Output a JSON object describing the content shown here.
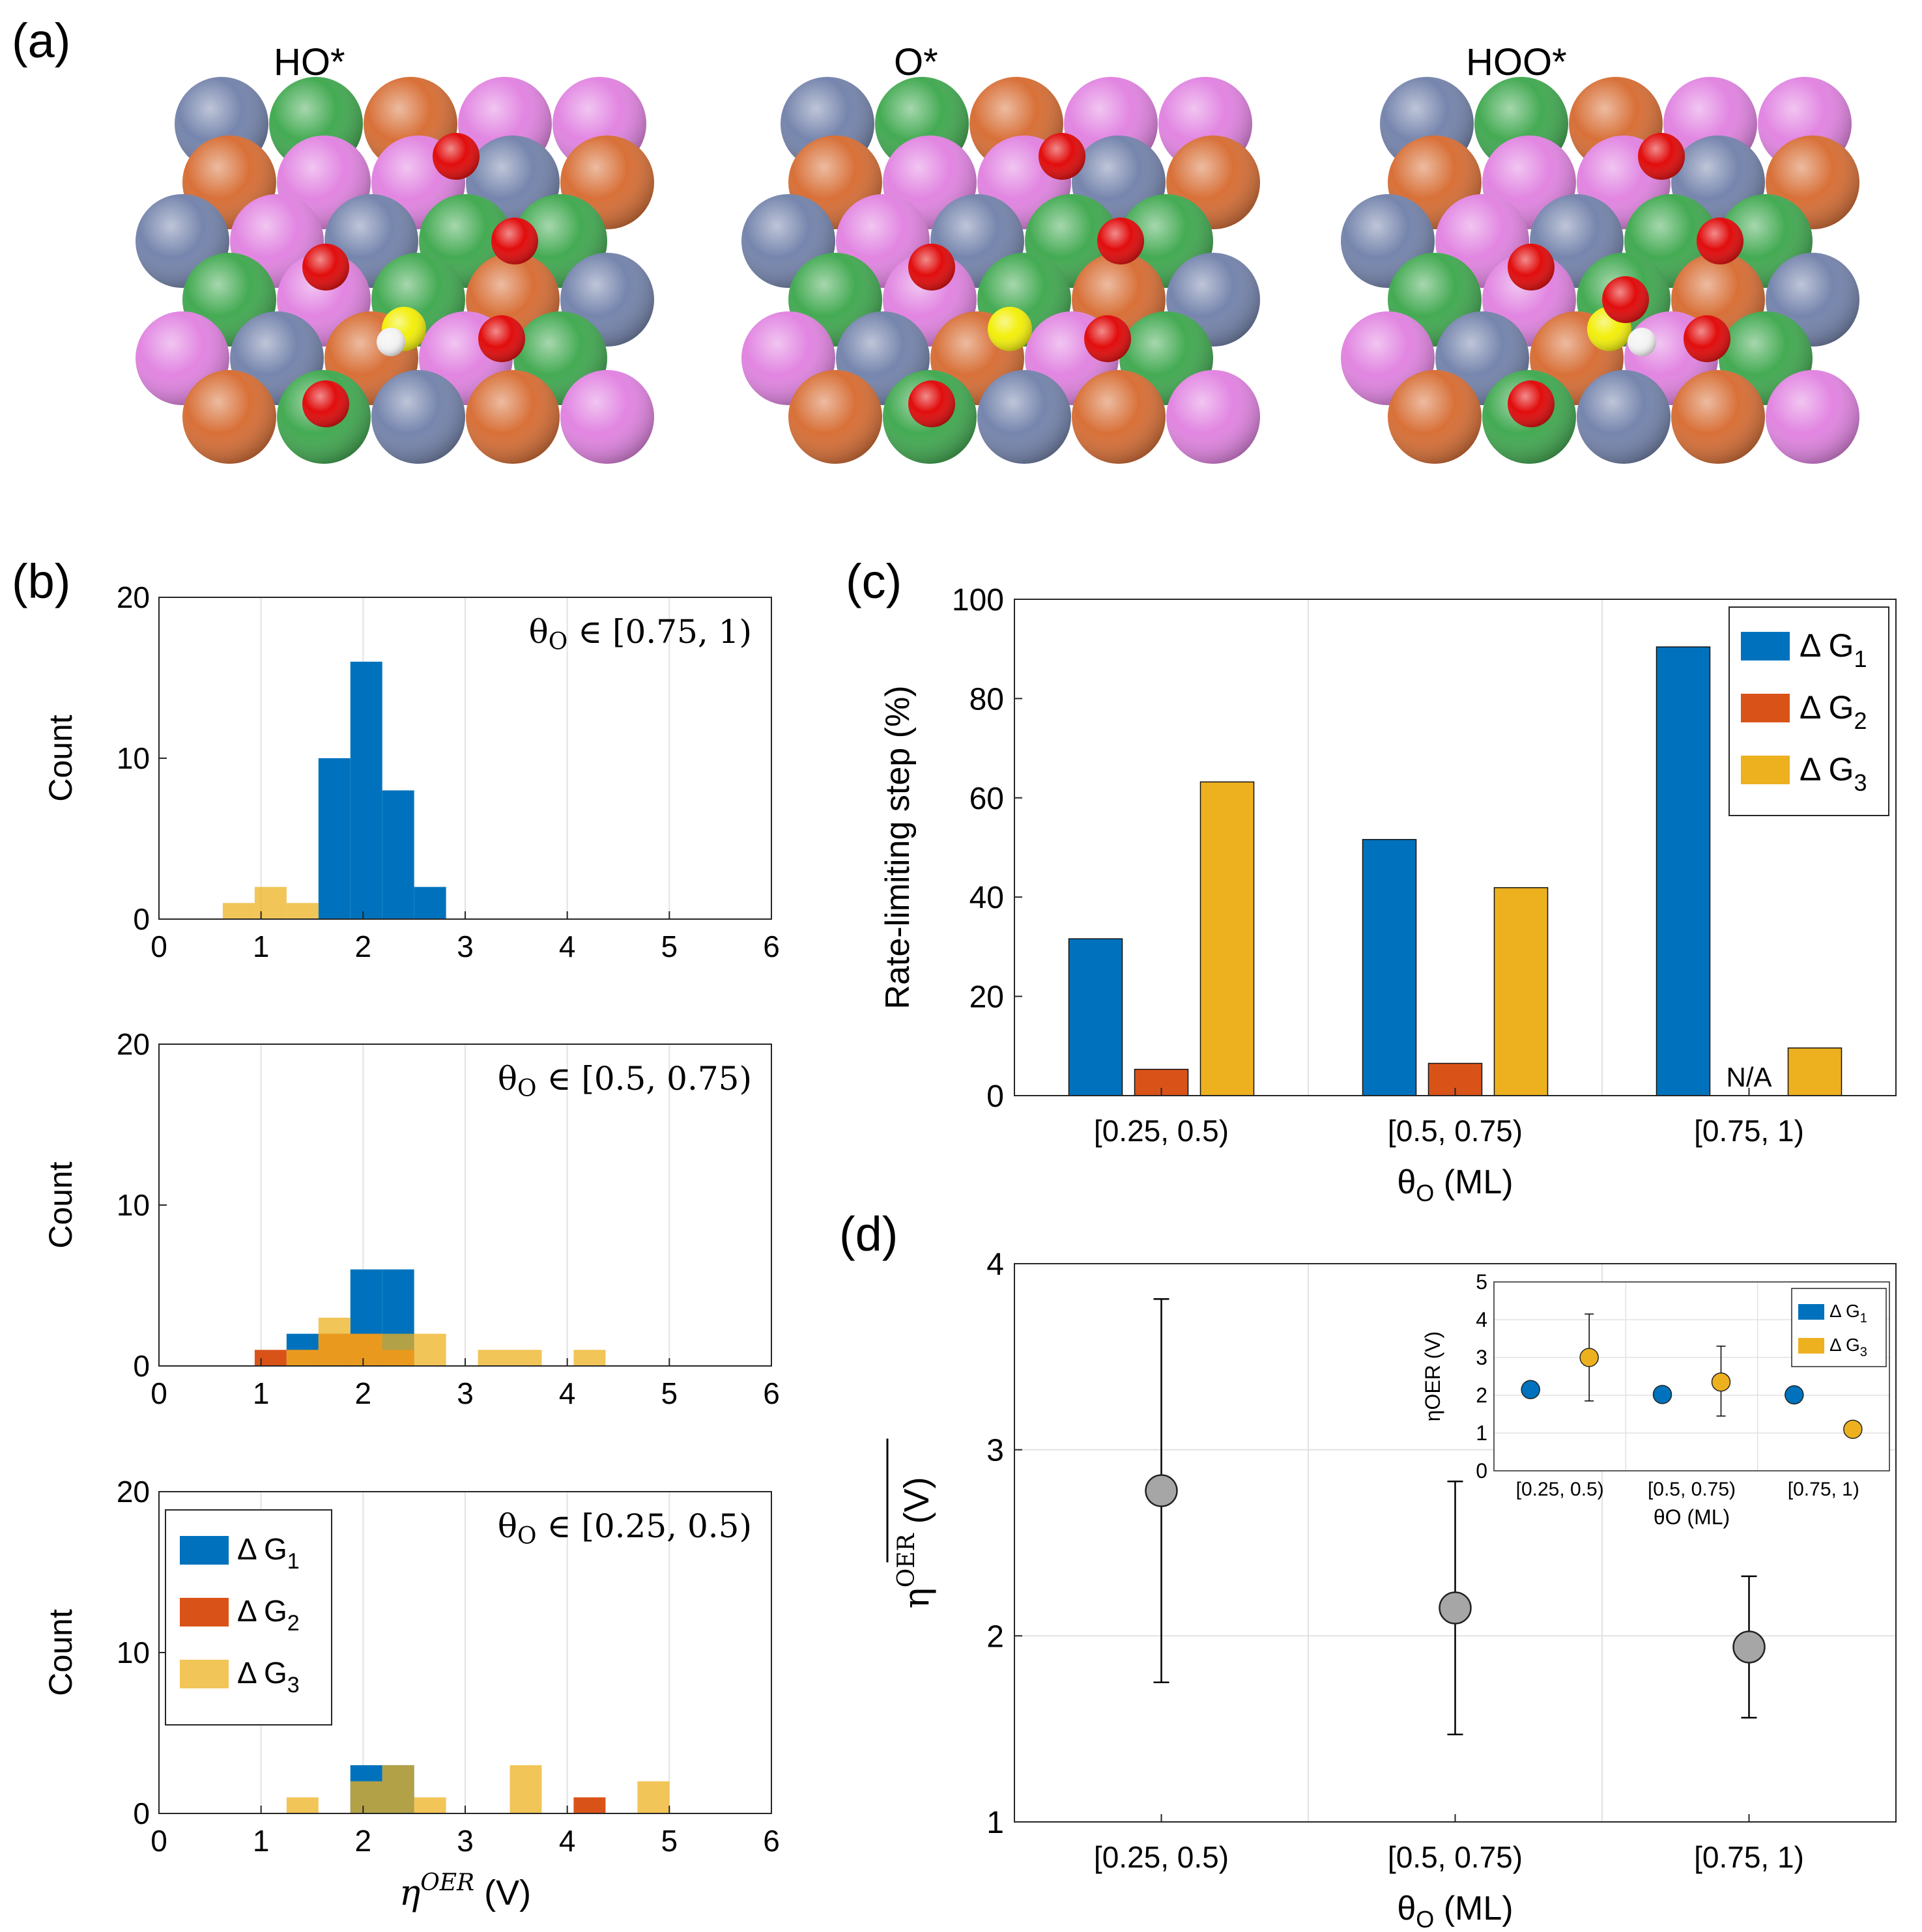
{
  "figure": {
    "panel_labels": [
      "(a)",
      "(b)",
      "(c)",
      "(d)"
    ],
    "colors": {
      "g1": "#0072BD",
      "g2": "#D95319",
      "g3": "#EDB120",
      "mean": "#a6a6a6",
      "grid": "#e2e2e2"
    }
  },
  "panel_a": {
    "titles": [
      "HO*",
      "O*",
      "HOO*"
    ],
    "atom_colors": [
      "#6f7fa9",
      "#d6692e",
      "#3aa64a",
      "#e07fe0",
      "#e00000",
      "#f2ee00",
      "#f2f2f2"
    ]
  },
  "chart_data": [
    {
      "id": "b1",
      "type": "bar",
      "title": "θO ∈ [0.75, 1)",
      "title_prefix": "θ",
      "title_sub": "O",
      "title_suffix": " ∈ [0.75, 1)",
      "xlabel": "",
      "ylabel": "Count",
      "xlim": [
        0,
        6
      ],
      "ylim": [
        0,
        20
      ],
      "xticks": [
        0,
        1,
        2,
        3,
        4,
        5,
        6
      ],
      "yticks": [
        0,
        10,
        20
      ],
      "bin_width": 0.3125,
      "grid": "x",
      "series": [
        {
          "name": "ΔG1",
          "bins": [
            [
              1.5625,
              10
            ],
            [
              1.875,
              16
            ],
            [
              2.1875,
              8
            ],
            [
              2.5,
              2
            ]
          ]
        },
        {
          "name": "ΔG2",
          "bins": []
        },
        {
          "name": "ΔG3",
          "bins": [
            [
              0.625,
              1
            ],
            [
              0.9375,
              2
            ],
            [
              1.25,
              1
            ]
          ]
        }
      ]
    },
    {
      "id": "b2",
      "type": "bar",
      "title": "θO ∈ [0.5, 0.75)",
      "title_prefix": "θ",
      "title_sub": "O",
      "title_suffix": " ∈ [0.5, 0.75)",
      "xlabel": "",
      "ylabel": "Count",
      "xlim": [
        0,
        6
      ],
      "ylim": [
        0,
        20
      ],
      "xticks": [
        0,
        1,
        2,
        3,
        4,
        5,
        6
      ],
      "yticks": [
        0,
        10,
        20
      ],
      "bin_width": 0.3125,
      "grid": "x",
      "series": [
        {
          "name": "ΔG1",
          "bins": [
            [
              1.25,
              2
            ],
            [
              1.5625,
              2
            ],
            [
              1.875,
              6
            ],
            [
              2.1875,
              6
            ]
          ]
        },
        {
          "name": "ΔG2",
          "bins": [
            [
              0.9375,
              1
            ],
            [
              1.25,
              1
            ],
            [
              1.5625,
              2
            ],
            [
              1.875,
              2
            ],
            [
              2.1875,
              1
            ]
          ]
        },
        {
          "name": "ΔG3",
          "bins": [
            [
              1.25,
              1
            ],
            [
              1.5625,
              3
            ],
            [
              1.875,
              2
            ],
            [
              2.1875,
              2
            ],
            [
              2.5,
              2
            ],
            [
              3.125,
              1
            ],
            [
              3.4375,
              1
            ],
            [
              4.0625,
              1
            ]
          ]
        }
      ]
    },
    {
      "id": "b3",
      "type": "bar",
      "title": "θO ∈ [0.25, 0.5)",
      "title_prefix": "θ",
      "title_sub": "O",
      "title_suffix": " ∈ [0.25, 0.5)",
      "xlabel": "ηOER (V)",
      "xlabel_main": "η",
      "xlabel_sup": "OER",
      "xlabel_unit": " (V)",
      "ylabel": "Count",
      "xlim": [
        0,
        6
      ],
      "ylim": [
        0,
        20
      ],
      "xticks": [
        0,
        1,
        2,
        3,
        4,
        5,
        6
      ],
      "yticks": [
        0,
        10,
        20
      ],
      "bin_width": 0.3125,
      "grid": "x",
      "legend": {
        "placement": "top-left",
        "entries": [
          [
            "Δ G",
            "1"
          ],
          [
            "Δ G",
            "2"
          ],
          [
            "Δ G",
            "3"
          ]
        ]
      },
      "series": [
        {
          "name": "ΔG1",
          "bins": [
            [
              1.875,
              3
            ],
            [
              2.1875,
              3
            ]
          ]
        },
        {
          "name": "ΔG2",
          "bins": [
            [
              4.0625,
              1
            ]
          ]
        },
        {
          "name": "ΔG3",
          "bins": [
            [
              1.25,
              1
            ],
            [
              1.875,
              2
            ],
            [
              2.1875,
              3
            ],
            [
              2.5,
              1
            ],
            [
              3.4375,
              3
            ],
            [
              4.6875,
              2
            ]
          ]
        }
      ]
    },
    {
      "id": "c",
      "type": "bar",
      "categories": [
        "[0.25, 0.5)",
        "[0.5, 0.75)",
        "[0.75, 1)"
      ],
      "series": [
        {
          "name": "Δ G1",
          "values": [
            31.6,
            51.6,
            90.4
          ]
        },
        {
          "name": "Δ G2",
          "values": [
            5.3,
            6.5,
            null
          ]
        },
        {
          "name": "Δ G3",
          "values": [
            63.2,
            41.9,
            9.6
          ]
        }
      ],
      "ylabel": "Rate-limiting step (%)",
      "xlabel": "θO (ML)",
      "xlabel_main": "θ",
      "xlabel_sub": "O",
      "xlabel_unit": " (ML)",
      "ylim": [
        0,
        100
      ],
      "yticks": [
        0,
        20,
        40,
        60,
        80,
        100
      ],
      "legend": {
        "placement": "top-right",
        "entries": [
          [
            "Δ G",
            "1"
          ],
          [
            "Δ G",
            "2"
          ],
          [
            "Δ G",
            "3"
          ]
        ]
      },
      "na_label": "N/A",
      "grid": "x"
    },
    {
      "id": "d",
      "type": "scatter",
      "categories": [
        "[0.25, 0.5)",
        "[0.5, 0.75)",
        "[0.75, 1)"
      ],
      "series": [
        {
          "name": "mean ηOER",
          "values": [
            2.78,
            2.15,
            1.94
          ],
          "err_low": [
            1.75,
            1.47,
            1.56
          ],
          "err_high": [
            3.81,
            2.83,
            2.32
          ]
        }
      ],
      "ylabel": "ηOER (V)",
      "ylabel_main": "η",
      "ylabel_sup": "OER",
      "ylabel_unit": " (V)",
      "xlabel": "θO (ML)",
      "xlabel_main": "θ",
      "xlabel_sub": "O",
      "xlabel_unit": " (ML)",
      "ylim": [
        1,
        4
      ],
      "yticks": [
        1,
        2,
        3,
        4
      ],
      "grid": "both"
    },
    {
      "id": "d_inset",
      "type": "scatter",
      "categories": [
        "[0.25, 0.5)",
        "[0.5, 0.75)",
        "[0.75, 1)"
      ],
      "series": [
        {
          "name": "Δ G1",
          "values": [
            2.15,
            2.02,
            2.01
          ],
          "err_low": [
            2.0,
            1.85,
            1.9
          ],
          "err_high": [
            2.3,
            2.2,
            2.12
          ]
        },
        {
          "name": "Δ G3",
          "values": [
            3.0,
            2.35,
            1.1
          ],
          "err_low": [
            1.85,
            1.45,
            0.9
          ],
          "err_high": [
            4.15,
            3.3,
            1.3
          ]
        }
      ],
      "ylabel": "ηOER (V)",
      "xlabel": "θO (ML)",
      "ylim": [
        0,
        5
      ],
      "yticks": [
        0,
        1,
        2,
        3,
        4,
        5
      ],
      "legend": {
        "placement": "top-right",
        "entries": [
          [
            "Δ G",
            "1"
          ],
          [
            "Δ G",
            "3"
          ]
        ]
      },
      "grid": "both"
    }
  ]
}
